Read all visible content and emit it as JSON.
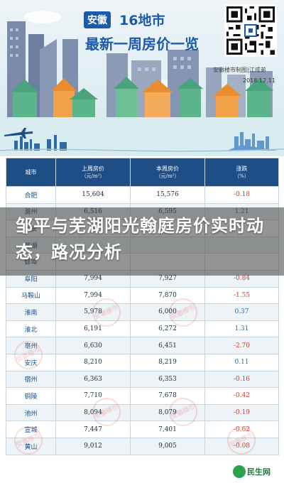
{
  "banner": {
    "tag": "安徽",
    "title_line1": "16地市",
    "title_line2": "最新一周房价一览",
    "studio": "安徽楼市制图|江成弟",
    "date": "2018.12.11"
  },
  "table": {
    "headers": [
      {
        "label": "城市",
        "sub": ""
      },
      {
        "label": "上周房价",
        "sub": "（元/m²）"
      },
      {
        "label": "本周房价",
        "sub": "（元/m²）"
      },
      {
        "label": "涨跌",
        "sub": "（%）"
      }
    ],
    "rows": [
      {
        "city": "合肥",
        "last": "15,604",
        "this": "15,576",
        "change": "-0.18",
        "dir": "neg"
      },
      {
        "city": "滁州",
        "last": "6,516",
        "this": "6,595",
        "change": "1.21",
        "dir": "pos"
      },
      {
        "city": "六安",
        "last": "",
        "this": "",
        "change": "",
        "dir": "neg"
      },
      {
        "city": "芜湖",
        "last": "",
        "this": "",
        "change": "",
        "dir": "neg"
      },
      {
        "city": "蚌埠",
        "last": "",
        "this": "",
        "change": "",
        "dir": "neg"
      },
      {
        "city": "阜阳",
        "last": "7,994",
        "this": "7,927",
        "change": "-0.84",
        "dir": "neg"
      },
      {
        "city": "马鞍山",
        "last": "7,994",
        "this": "7,870",
        "change": "-1.55",
        "dir": "neg"
      },
      {
        "city": "淮南",
        "last": "5,978",
        "this": "6,000",
        "change": "0.37",
        "dir": "pos"
      },
      {
        "city": "淮北",
        "last": "6,191",
        "this": "6,272",
        "change": "1.31",
        "dir": "pos"
      },
      {
        "city": "亳州",
        "last": "6,630",
        "this": "6,451",
        "change": "-2.70",
        "dir": "neg"
      },
      {
        "city": "安庆",
        "last": "8,210",
        "this": "8,219",
        "change": "0.11",
        "dir": "pos"
      },
      {
        "city": "宿州",
        "last": "6,363",
        "this": "6,353",
        "change": "-0.16",
        "dir": "neg"
      },
      {
        "city": "铜陵",
        "last": "7,710",
        "this": "7,678",
        "change": "-0.42",
        "dir": "neg"
      },
      {
        "city": "池州",
        "last": "8,094",
        "this": "8,079",
        "change": "-0.19",
        "dir": "neg"
      },
      {
        "city": "宣城",
        "last": "7,447",
        "this": "7,401",
        "change": "-0.62",
        "dir": "neg"
      },
      {
        "city": "黄山",
        "last": "9,012",
        "this": "9,005",
        "change": "-0.08",
        "dir": "neg"
      }
    ]
  },
  "overlay": {
    "headline": "邹平与芜湖阳光翰庭房价实时动态，路况分析"
  },
  "watermark": {
    "text": "安徽楼市"
  },
  "footer": {
    "logo_text": "民生网",
    "logo_sub": "ms.com"
  },
  "colors": {
    "header_blue": "#1f4e86",
    "title_blue": "#1b5aa8",
    "negative_red": "#d23c2f",
    "positive_blue": "#1b6eb8"
  }
}
